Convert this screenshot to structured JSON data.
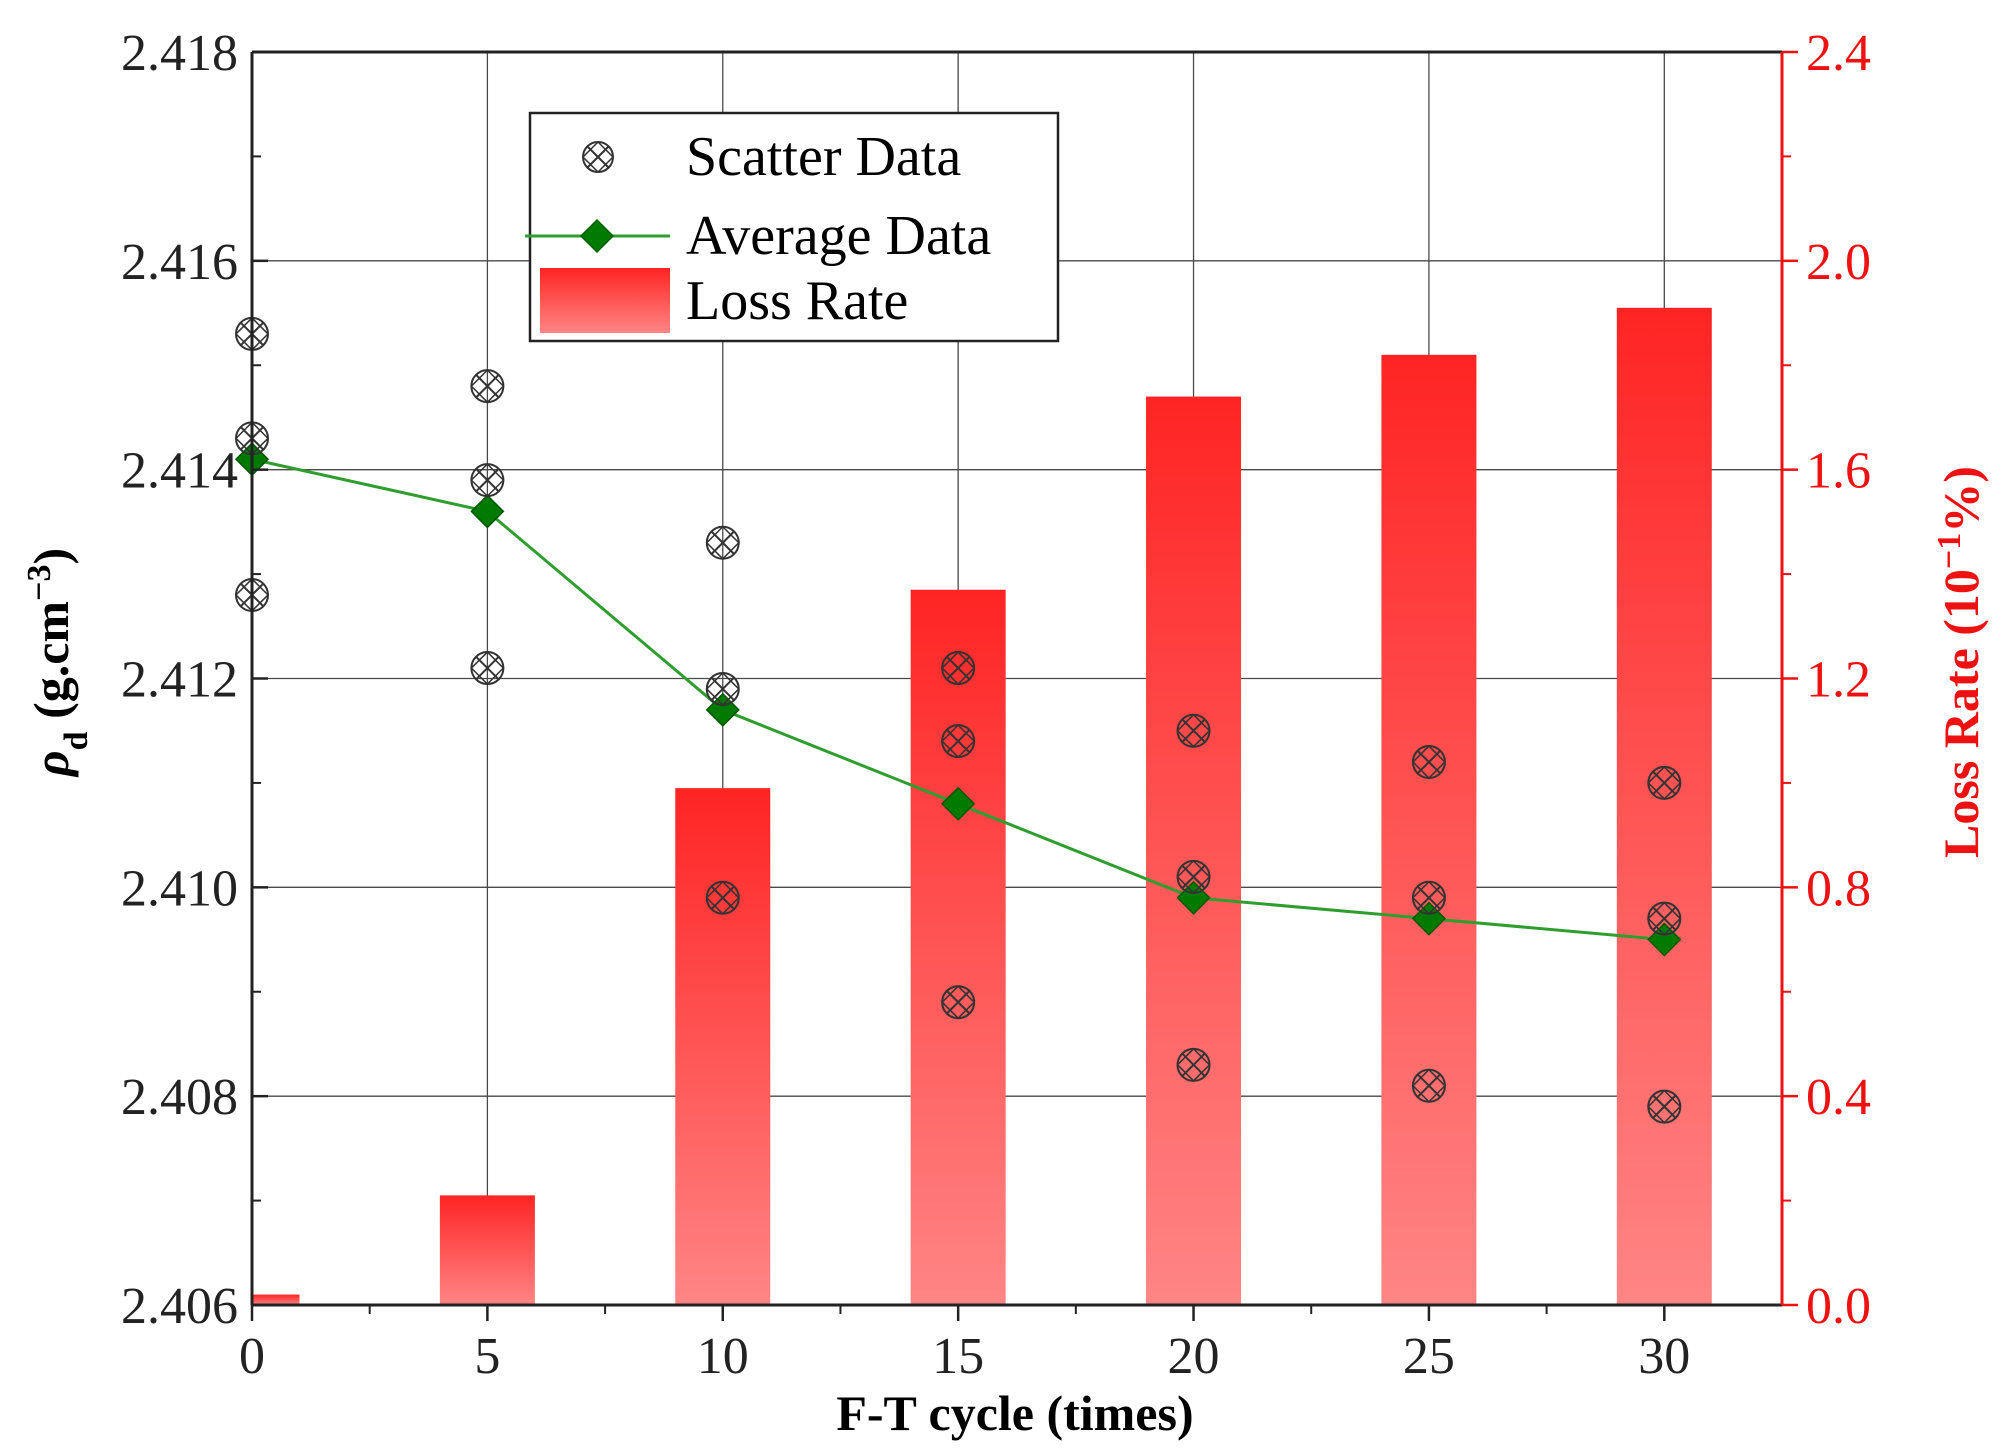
{
  "chart_data": {
    "type": "bar+line+scatter",
    "xlabel": "F-T cycle (times)",
    "ylabel_left": {
      "symbol": "ρ",
      "sub": "d",
      "unit_open": " (g.cm",
      "sup": "−3",
      "unit_close": ")"
    },
    "ylabel_right": {
      "text_open": "Loss Rate (10",
      "sup": "−1",
      "text_close": "%)"
    },
    "x": [
      0,
      5,
      10,
      15,
      20,
      25,
      30
    ],
    "x_ticks": [
      "0",
      "5",
      "10",
      "15",
      "20",
      "25",
      "30"
    ],
    "xlim": [
      0,
      32.5
    ],
    "ylim_left": [
      2.406,
      2.418
    ],
    "y_ticks_left": [
      "2.406",
      "2.408",
      "2.410",
      "2.412",
      "2.414",
      "2.416",
      "2.418"
    ],
    "ylim_right": [
      0.0,
      2.4
    ],
    "y_ticks_right": [
      "0.0",
      "0.4",
      "0.8",
      "1.2",
      "1.6",
      "2.0",
      "2.4"
    ],
    "grid": true,
    "legend_position": "top-left",
    "series": [
      {
        "name": "Scatter Data",
        "kind": "scatter",
        "axis": "left",
        "points": [
          [
            0,
            2.4153
          ],
          [
            0,
            2.4143
          ],
          [
            0,
            2.4128
          ],
          [
            5,
            2.4148
          ],
          [
            5,
            2.4139
          ],
          [
            5,
            2.4121
          ],
          [
            10,
            2.4133
          ],
          [
            10,
            2.4119
          ],
          [
            10,
            2.4099
          ],
          [
            15,
            2.4121
          ],
          [
            15,
            2.4114
          ],
          [
            15,
            2.4089
          ],
          [
            20,
            2.4115
          ],
          [
            20,
            2.4101
          ],
          [
            20,
            2.4083
          ],
          [
            25,
            2.4112
          ],
          [
            25,
            2.4099
          ],
          [
            25,
            2.4081
          ],
          [
            30,
            2.411
          ],
          [
            30,
            2.4097
          ],
          [
            30,
            2.4079
          ]
        ]
      },
      {
        "name": "Average Data",
        "kind": "line",
        "axis": "left",
        "color": "#007a00",
        "values": [
          2.4141,
          2.4136,
          2.4117,
          2.4108,
          2.4099,
          2.4097,
          2.4095
        ]
      },
      {
        "name": "Loss Rate",
        "kind": "bar",
        "axis": "right",
        "color": "#ff2020",
        "values": [
          0.02,
          0.21,
          0.99,
          1.37,
          1.74,
          1.82,
          1.91
        ]
      }
    ],
    "colors": {
      "right_axis": "#ee1111",
      "line": "#007a00",
      "bar_top": "#ff2424",
      "bar_bottom": "#ff8585"
    }
  }
}
